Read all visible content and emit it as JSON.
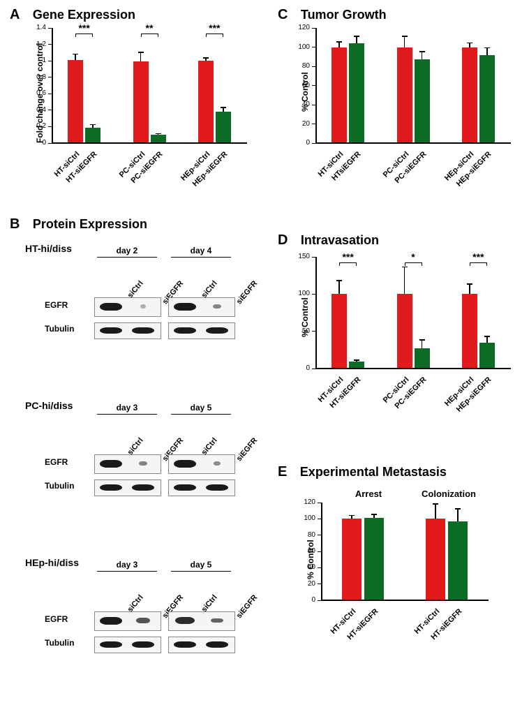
{
  "colors": {
    "ctrl": "#e11b1b",
    "egfr": "#0c6b25",
    "axis": "#000000",
    "bg": "#ffffff"
  },
  "panels": {
    "A": {
      "letter": "A",
      "title": "Gene Expression",
      "ylabel": "Fold change over control",
      "ylim": [
        0,
        1.4
      ],
      "yticks": [
        0,
        0.2,
        0.4,
        0.6,
        0.8,
        1.0,
        1.2,
        1.4
      ],
      "groups": [
        "HT",
        "PC",
        "HEp"
      ],
      "xlabels": [
        "HT-siCtrl",
        "HT-siEGFR",
        "PC-siCtrl",
        "PC-siEGFR",
        "HEp-siCtrl",
        "HEp-siEGFR"
      ],
      "bars": [
        {
          "val": 1.01,
          "err": 0.08,
          "color": "#e11b1b"
        },
        {
          "val": 0.19,
          "err": 0.04,
          "color": "#0c6b25"
        },
        {
          "val": 0.99,
          "err": 0.12,
          "color": "#e11b1b"
        },
        {
          "val": 0.1,
          "err": 0.02,
          "color": "#0c6b25"
        },
        {
          "val": 1.0,
          "err": 0.04,
          "color": "#e11b1b"
        },
        {
          "val": 0.38,
          "err": 0.06,
          "color": "#0c6b25"
        }
      ],
      "sig": [
        "***",
        "**",
        "***"
      ]
    },
    "B": {
      "letter": "B",
      "title": "Protein Expression",
      "blots": [
        {
          "name": "HT-hi/diss",
          "days": [
            "day 2",
            "day 4"
          ],
          "cols": [
            "siCtrl",
            "siEGFR",
            "siCtrl",
            "siEGFR"
          ],
          "rows": [
            "EGFR",
            "Tubulin"
          ],
          "egfr_intensity": [
            1.0,
            0.08,
            1.0,
            0.35
          ],
          "tub_intensity": [
            1.0,
            1.0,
            1.0,
            1.0
          ]
        },
        {
          "name": "PC-hi/diss",
          "days": [
            "day 3",
            "day 5"
          ],
          "cols": [
            "siCtrl",
            "siEGFR",
            "siCtrl",
            "siEGFR"
          ],
          "rows": [
            "EGFR",
            "Tubulin"
          ],
          "egfr_intensity": [
            1.0,
            0.35,
            1.0,
            0.3
          ],
          "tub_intensity": [
            1.0,
            1.0,
            1.0,
            1.0
          ]
        },
        {
          "name": "HEp-hi/diss",
          "days": [
            "day 3",
            "day 5"
          ],
          "cols": [
            "siCtrl",
            "siEGFR",
            "siCtrl",
            "siEGFR"
          ],
          "rows": [
            "EGFR",
            "Tubulin"
          ],
          "egfr_intensity": [
            1.0,
            0.65,
            0.9,
            0.55
          ],
          "tub_intensity": [
            1.0,
            1.0,
            1.0,
            1.0
          ]
        }
      ]
    },
    "C": {
      "letter": "C",
      "title": "Tumor Growth",
      "ylabel": "% Control",
      "ylim": [
        0,
        120
      ],
      "yticks": [
        0,
        20,
        40,
        60,
        80,
        100,
        120
      ],
      "xlabels": [
        "HT-siCtrl",
        "HTsiEGFR",
        "PC-siCtrl",
        "PC-siEGFR",
        "HEp-siCtrl",
        "HEp-siEGFR"
      ],
      "bars": [
        {
          "val": 100,
          "err": 6,
          "color": "#e11b1b"
        },
        {
          "val": 104,
          "err": 8,
          "color": "#0c6b25"
        },
        {
          "val": 100,
          "err": 12,
          "color": "#e11b1b"
        },
        {
          "val": 87,
          "err": 9,
          "color": "#0c6b25"
        },
        {
          "val": 100,
          "err": 5,
          "color": "#e11b1b"
        },
        {
          "val": 92,
          "err": 8,
          "color": "#0c6b25"
        }
      ]
    },
    "D": {
      "letter": "D",
      "title": "Intravasation",
      "ylabel": "% Control",
      "ylim": [
        0,
        150
      ],
      "yticks": [
        0,
        50,
        100,
        150
      ],
      "xlabels": [
        "HT-siCtrl",
        "HT-siEGFR",
        "PC-siCtrl",
        "PC-siEGFR",
        "HEp-siCtrl",
        "HEp-siEGFR"
      ],
      "bars": [
        {
          "val": 100,
          "err": 19,
          "color": "#e11b1b"
        },
        {
          "val": 9,
          "err": 3,
          "color": "#0c6b25"
        },
        {
          "val": 100,
          "err": 37,
          "color": "#e11b1b"
        },
        {
          "val": 27,
          "err": 12,
          "color": "#0c6b25"
        },
        {
          "val": 100,
          "err": 14,
          "color": "#e11b1b"
        },
        {
          "val": 35,
          "err": 9,
          "color": "#0c6b25"
        }
      ],
      "sig": [
        "***",
        "*",
        "***"
      ]
    },
    "E": {
      "letter": "E",
      "title": "Experimental Metastasis",
      "ylabel": "% Control",
      "groups": [
        "Arrest",
        "Colonization"
      ],
      "ylim": [
        0,
        120
      ],
      "yticks": [
        0,
        20,
        40,
        60,
        80,
        100,
        120
      ],
      "xlabels": [
        "HT-siCtrl",
        "HT-siEGFR",
        "HT-siCtrl",
        "HT-siEGFR"
      ],
      "bars": [
        {
          "val": 100,
          "err": 5,
          "color": "#e11b1b"
        },
        {
          "val": 101,
          "err": 5,
          "color": "#0c6b25"
        },
        {
          "val": 100,
          "err": 19,
          "color": "#e11b1b"
        },
        {
          "val": 97,
          "err": 16,
          "color": "#0c6b25"
        }
      ]
    }
  }
}
